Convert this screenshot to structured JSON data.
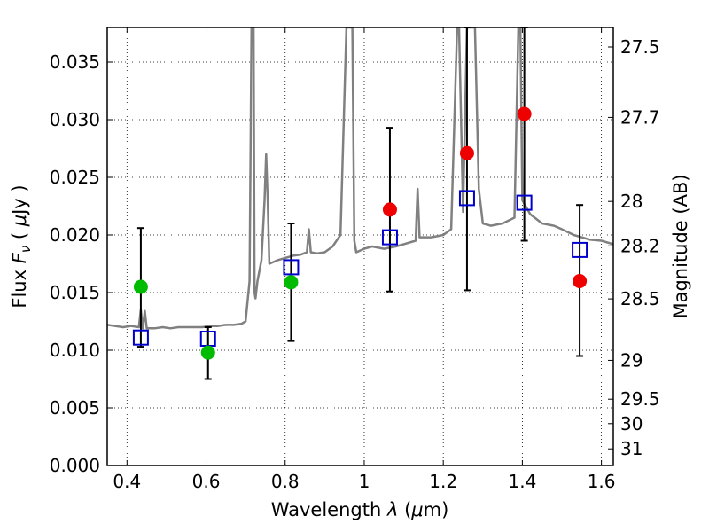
{
  "chart_data": {
    "type": "scatter",
    "xlabel": "Wavelength  λ (μm)",
    "ylabel": "Flux  F_ν  ( μJy )",
    "ylabel_parts": {
      "pre": "Flux  ",
      "F": "F",
      "nu": "ν",
      "mid": "  ( ",
      "mu": "μ",
      "post": "Jy )"
    },
    "xlabel_parts": {
      "pre": "Wavelength  ",
      "lambda": "λ",
      "mid": " (",
      "mu": "μ",
      "post": "m)"
    },
    "y2label": "Magnitude (AB)",
    "xlim": [
      0.35,
      1.63
    ],
    "ylim": [
      0.0,
      0.038
    ],
    "grid": true,
    "x_ticks": [
      {
        "v": 0.4,
        "label": "0.4"
      },
      {
        "v": 0.6,
        "label": "0.6"
      },
      {
        "v": 0.8,
        "label": "0.8"
      },
      {
        "v": 1.0,
        "label": "1"
      },
      {
        "v": 1.2,
        "label": "1.2"
      },
      {
        "v": 1.4,
        "label": "1.4"
      },
      {
        "v": 1.6,
        "label": "1.6"
      }
    ],
    "y_ticks": [
      {
        "v": 0.0,
        "label": "0.000"
      },
      {
        "v": 0.005,
        "label": "0.005"
      },
      {
        "v": 0.01,
        "label": "0.010"
      },
      {
        "v": 0.015,
        "label": "0.015"
      },
      {
        "v": 0.02,
        "label": "0.020"
      },
      {
        "v": 0.025,
        "label": "0.025"
      },
      {
        "v": 0.03,
        "label": "0.030"
      },
      {
        "v": 0.035,
        "label": "0.035"
      }
    ],
    "y2_ticks": [
      {
        "mag": 27.5,
        "label": "27.5"
      },
      {
        "mag": 27.7,
        "label": "27.7"
      },
      {
        "mag": 28.0,
        "label": "28"
      },
      {
        "mag": 28.2,
        "label": "28.2"
      },
      {
        "mag": 28.5,
        "label": "28.5"
      },
      {
        "mag": 29.0,
        "label": "29"
      },
      {
        "mag": 29.5,
        "label": "29.5"
      },
      {
        "mag": 30.0,
        "label": "30"
      },
      {
        "mag": 31.0,
        "label": "31"
      }
    ],
    "series": [
      {
        "kind": "spectrum",
        "color": "#808080",
        "x": [
          0.35,
          0.37,
          0.39,
          0.41,
          0.43,
          0.435,
          0.44,
          0.445,
          0.45,
          0.47,
          0.49,
          0.51,
          0.53,
          0.55,
          0.57,
          0.59,
          0.61,
          0.63,
          0.65,
          0.67,
          0.69,
          0.7,
          0.71,
          0.715,
          0.72,
          0.7225,
          0.725,
          0.73,
          0.74,
          0.748,
          0.752,
          0.756,
          0.76,
          0.78,
          0.8,
          0.82,
          0.84,
          0.855,
          0.86,
          0.865,
          0.88,
          0.9,
          0.92,
          0.94,
          0.955,
          0.96,
          0.965,
          0.97,
          0.975,
          0.98,
          1.0,
          1.02,
          1.05,
          1.08,
          1.1,
          1.13,
          1.135,
          1.14,
          1.17,
          1.2,
          1.22,
          1.235,
          1.24,
          1.25,
          1.26,
          1.27,
          1.28,
          1.29,
          1.3,
          1.32,
          1.35,
          1.38,
          1.39,
          1.395,
          1.4,
          1.42,
          1.45,
          1.48,
          1.5,
          1.53,
          1.55,
          1.57,
          1.6,
          1.63
        ],
        "y": [
          0.0122,
          0.0121,
          0.012,
          0.0121,
          0.012,
          0.0135,
          0.0119,
          0.0134,
          0.0119,
          0.0119,
          0.012,
          0.0119,
          0.012,
          0.012,
          0.012,
          0.012,
          0.0121,
          0.0121,
          0.0122,
          0.0122,
          0.0123,
          0.0125,
          0.016,
          0.038,
          0.038,
          0.015,
          0.0145,
          0.016,
          0.0178,
          0.023,
          0.027,
          0.023,
          0.0175,
          0.0178,
          0.018,
          0.0182,
          0.0183,
          0.0185,
          0.0205,
          0.0185,
          0.0184,
          0.0185,
          0.019,
          0.02,
          0.038,
          0.038,
          0.038,
          0.038,
          0.0195,
          0.0185,
          0.0188,
          0.019,
          0.0188,
          0.019,
          0.0192,
          0.0195,
          0.024,
          0.0198,
          0.0198,
          0.02,
          0.0205,
          0.038,
          0.038,
          0.022,
          0.038,
          0.038,
          0.038,
          0.024,
          0.021,
          0.0208,
          0.021,
          0.0215,
          0.038,
          0.038,
          0.023,
          0.0218,
          0.021,
          0.0208,
          0.0205,
          0.02,
          0.0198,
          0.0196,
          0.0195,
          0.0192
        ]
      },
      {
        "kind": "errorbars",
        "color": "#000000",
        "points": [
          {
            "x": 0.435,
            "lo": 0.0103,
            "hi": 0.0206
          },
          {
            "x": 0.605,
            "lo": 0.0075,
            "hi": 0.012
          },
          {
            "x": 0.815,
            "lo": 0.0108,
            "hi": 0.021
          },
          {
            "x": 1.065,
            "lo": 0.0151,
            "hi": 0.0293
          },
          {
            "x": 1.26,
            "lo": 0.0152,
            "hi": 0.038
          },
          {
            "x": 1.405,
            "lo": 0.0195,
            "hi": 0.038
          },
          {
            "x": 1.545,
            "lo": 0.0095,
            "hi": 0.0226
          }
        ]
      },
      {
        "kind": "squares",
        "color": "#0000cc",
        "x": [
          0.435,
          0.605,
          0.815,
          1.065,
          1.26,
          1.405,
          1.545
        ],
        "y": [
          0.0111,
          0.011,
          0.0172,
          0.0198,
          0.0232,
          0.0228,
          0.0187
        ]
      },
      {
        "kind": "circles",
        "color": "#00bb00",
        "x": [
          0.435,
          0.605,
          0.815
        ],
        "y": [
          0.0155,
          0.0098,
          0.0159
        ]
      },
      {
        "kind": "circles",
        "color": "#ee0000",
        "x": [
          1.065,
          1.26,
          1.405,
          1.545
        ],
        "y": [
          0.0222,
          0.0271,
          0.0305,
          0.016
        ]
      }
    ]
  }
}
